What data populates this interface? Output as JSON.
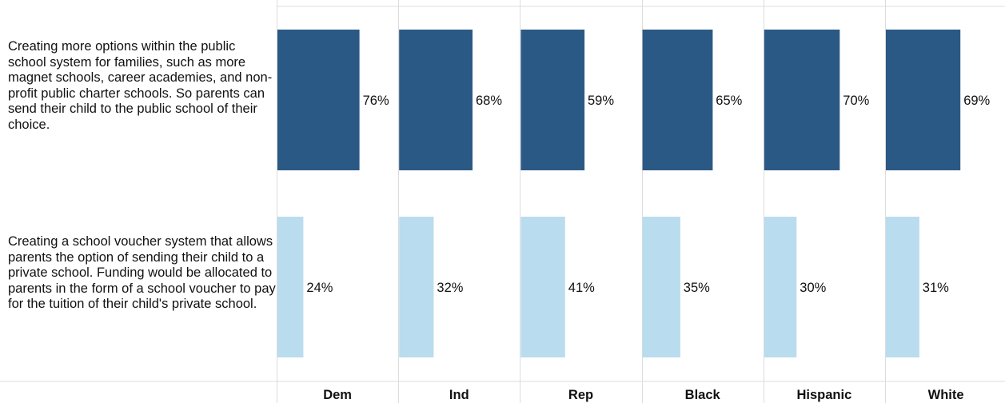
{
  "chart_data": {
    "type": "bar",
    "orientation": "horizontal",
    "layout": "small-multiples",
    "categories": [
      "Creating more options within the public school system for families, such as more magnet schools, career academies, and non-profit public charter schools. So parents can send their child to the public school of their choice.",
      "Creating a school voucher system that allows parents the option of sending their child to a private school. Funding would be allocated to parents in the form of a school voucher to pay for the tuition of their child's private school."
    ],
    "panels": [
      "Dem",
      "Ind",
      "Rep",
      "Black",
      "Hispanic",
      "White"
    ],
    "values": [
      [
        76,
        68,
        59,
        65,
        70,
        69
      ],
      [
        24,
        32,
        41,
        35,
        30,
        31
      ]
    ],
    "value_suffix": "%",
    "xlim": [
      0,
      100
    ],
    "grid": true,
    "colors": [
      "#2b5985",
      "#b9dcef"
    ],
    "grid_color": "#dcdcdc"
  }
}
